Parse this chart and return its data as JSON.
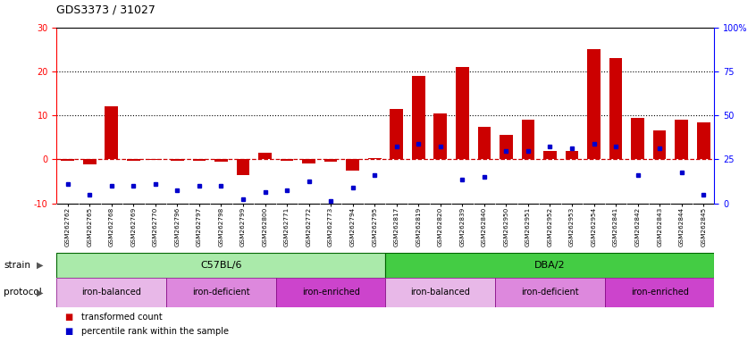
{
  "title": "GDS3373 / 31027",
  "samples": [
    "GSM262762",
    "GSM262765",
    "GSM262768",
    "GSM262769",
    "GSM262770",
    "GSM262796",
    "GSM262797",
    "GSM262798",
    "GSM262799",
    "GSM262800",
    "GSM262771",
    "GSM262772",
    "GSM262773",
    "GSM262794",
    "GSM262795",
    "GSM262817",
    "GSM262819",
    "GSM262820",
    "GSM262839",
    "GSM262840",
    "GSM262950",
    "GSM262951",
    "GSM262952",
    "GSM262953",
    "GSM262954",
    "GSM262841",
    "GSM262842",
    "GSM262843",
    "GSM262844",
    "GSM262845"
  ],
  "red_bars": [
    -0.3,
    -1.2,
    12.0,
    -0.3,
    -0.2,
    -0.3,
    -0.3,
    -0.5,
    -3.5,
    1.5,
    -0.3,
    -1.0,
    -0.5,
    -2.5,
    0.3,
    11.5,
    19.0,
    10.5,
    21.0,
    7.5,
    5.5,
    9.0,
    2.0,
    2.0,
    25.0,
    23.0,
    9.5,
    6.5,
    9.0,
    8.5
  ],
  "blue_vals": [
    -5.5,
    -8.0,
    -6.0,
    -6.0,
    -5.5,
    -7.0,
    -6.0,
    -6.0,
    -9.0,
    -7.5,
    -7.0,
    -5.0,
    -9.5,
    -6.5,
    -3.5,
    3.0,
    3.5,
    3.0,
    -4.5,
    -4.0,
    2.0,
    2.0,
    3.0,
    2.5,
    3.5,
    3.0,
    -3.5,
    2.5,
    -3.0,
    -8.0
  ],
  "ylim_left": [
    -10,
    30
  ],
  "ylim_right": [
    0,
    100
  ],
  "yticks_left": [
    -10,
    0,
    10,
    20,
    30
  ],
  "ytick_labels_left": [
    "-10",
    "0",
    "10",
    "20",
    "30"
  ],
  "yticks_right": [
    0,
    25,
    50,
    75,
    100
  ],
  "ytick_labels_right": [
    "0",
    "25",
    "50",
    "75",
    "100%"
  ],
  "strain_groups": [
    {
      "label": "C57BL/6",
      "start": 0,
      "end": 15,
      "color": "#aaeaaa"
    },
    {
      "label": "DBA/2",
      "start": 15,
      "end": 30,
      "color": "#44cc44"
    }
  ],
  "protocol_groups": [
    {
      "label": "iron-balanced",
      "start": 0,
      "end": 5,
      "color": "#e8b8e8"
    },
    {
      "label": "iron-deficient",
      "start": 5,
      "end": 10,
      "color": "#dd88dd"
    },
    {
      "label": "iron-enriched",
      "start": 10,
      "end": 15,
      "color": "#cc44cc"
    },
    {
      "label": "iron-balanced",
      "start": 15,
      "end": 20,
      "color": "#e8b8e8"
    },
    {
      "label": "iron-deficient",
      "start": 20,
      "end": 25,
      "color": "#dd88dd"
    },
    {
      "label": "iron-enriched",
      "start": 25,
      "end": 30,
      "color": "#cc44cc"
    }
  ],
  "bar_color": "#cc0000",
  "dot_color": "#0000cc",
  "zero_line_color": "#cc0000",
  "bg_color": "#ffffff",
  "chart_bg": "#ffffff",
  "xtick_bg": "#e0e0e0"
}
